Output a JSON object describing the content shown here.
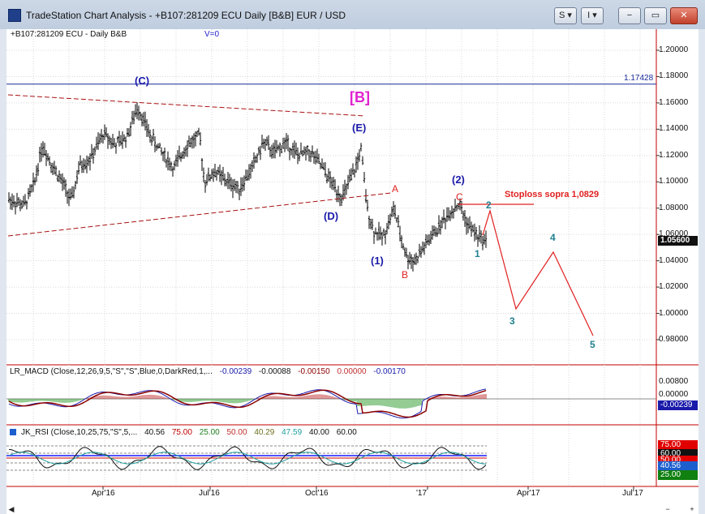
{
  "window": {
    "title": "TradeStation Chart Analysis - +B107:281209 ECU Daily [B&B] EUR / USD",
    "buttons": {
      "s_label": "S ▾",
      "i_label": "I ▾",
      "min_label": "−",
      "max_label": "▭",
      "close_label": "✕"
    }
  },
  "chart": {
    "symbol_line": "+B107:281209 ECU - Daily  B&B",
    "volume_label": "V=0",
    "price_axis": [
      "1.20000",
      "1.18000",
      "1.16000",
      "1.14000",
      "1.12000",
      "1.10000",
      "1.08000",
      "1.06000",
      "1.04000",
      "1.02000",
      "1.00000",
      "0.98000"
    ],
    "last_price": "1.05600",
    "hline_price": "1.17428",
    "stoploss_text": "Stoploss sopra 1,0829",
    "wave_labels": {
      "C_big": "(C)",
      "B_box": "[B]",
      "E": "(E)",
      "D": "(D)",
      "one_paren": "(1)",
      "two_paren": "(2)",
      "A": "A",
      "B": "B",
      "C": "C",
      "n1": "1",
      "n2": "2",
      "n3": "3",
      "n4": "4",
      "n5": "5"
    },
    "x_axis": [
      "Apr'16",
      "Jul'16",
      "Oct'16",
      "'17",
      "Apr'17",
      "Jul'17"
    ],
    "colors": {
      "price_bars": "#000000",
      "wave_blue": "#1a1aaa",
      "wave_red": "#e02020",
      "wave_teal": "#208090",
      "magenta": "#e020d0",
      "trend_dark_red": "#aa1111"
    }
  },
  "macd": {
    "label": "LR_MACD (Close,12,26,9,5,\"S\",\"S\",Blue,0,DarkRed,1,...",
    "values": [
      "-0.00239",
      "-0.00088",
      "-0.00150",
      "0.00000",
      "-0.00170"
    ],
    "value_colors": [
      "#1a1aaa",
      "#111111",
      "#8b0000",
      "#c03030",
      "#1a1aaa"
    ],
    "axis": [
      "0.00800",
      "0.00000"
    ],
    "current": "-0.00239"
  },
  "rsi": {
    "label": "JK_RSI (Close,10,25,75,\"S\",5,...",
    "values": [
      "40.56",
      "75.00",
      "25.00",
      "50.00",
      "40.29",
      "47.59",
      "40.00",
      "60.00"
    ],
    "value_colors": [
      "#111111",
      "#c00000",
      "#208020",
      "#c03030",
      "#707020",
      "#20a0a0",
      "#111111",
      "#111111"
    ],
    "tags": [
      {
        "text": "75.00",
        "bg": "#e00000",
        "color": "#ffffff"
      },
      {
        "text": "60.00",
        "bg": "#111111",
        "color": "#ffffff"
      },
      {
        "text": "50.00",
        "bg": "#e00000",
        "color": "#ffffff"
      },
      {
        "text": "40.56",
        "bg": "#1e5fcf",
        "color": "#ffffff"
      },
      {
        "text": "25.00",
        "bg": "#108010",
        "color": "#ffffff"
      }
    ]
  }
}
